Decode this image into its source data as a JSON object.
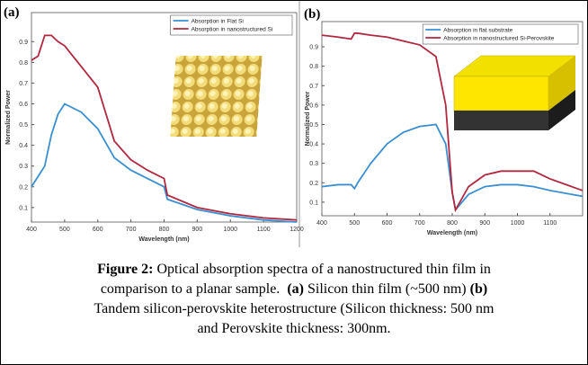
{
  "chart_data": [
    {
      "type": "line",
      "panel": "(a)",
      "xlabel": "Wavelength (nm)",
      "ylabel": "Normalized Power",
      "x": [
        400,
        420,
        440,
        460,
        480,
        500,
        550,
        600,
        650,
        700,
        750,
        800,
        810,
        900,
        1000,
        1100,
        1200
      ],
      "series": [
        {
          "name": "Absorption in Flat Si",
          "color": "#3b8fd0",
          "values": [
            0.2,
            0.25,
            0.3,
            0.45,
            0.55,
            0.6,
            0.56,
            0.48,
            0.34,
            0.28,
            0.24,
            0.2,
            0.14,
            0.09,
            0.06,
            0.04,
            0.03
          ]
        },
        {
          "name": "Absorption in nanostructured Si",
          "color": "#b0283f",
          "values": [
            0.81,
            0.83,
            0.93,
            0.93,
            0.9,
            0.88,
            0.78,
            0.68,
            0.42,
            0.33,
            0.28,
            0.24,
            0.16,
            0.1,
            0.07,
            0.05,
            0.04
          ]
        }
      ],
      "xlim": [
        400,
        1200
      ],
      "xticks": [
        400,
        500,
        600,
        700,
        800,
        900,
        1000,
        1100,
        1200
      ],
      "ylim": [
        0.03,
        1.04
      ],
      "yticks": [
        0.1,
        0.2,
        0.3,
        0.4,
        0.5,
        0.6,
        0.7,
        0.8,
        0.9
      ],
      "legend": "upper right"
    },
    {
      "type": "line",
      "panel": "(b)",
      "xlabel": "Wavelength (nm)",
      "ylabel": "Normalized Power",
      "x": [
        400,
        450,
        490,
        500,
        510,
        550,
        600,
        650,
        700,
        750,
        780,
        800,
        810,
        850,
        900,
        950,
        1000,
        1050,
        1100,
        1200
      ],
      "series": [
        {
          "name": "Absorption in flat substrate",
          "color": "#3b8fd0",
          "values": [
            0.18,
            0.19,
            0.19,
            0.17,
            0.2,
            0.3,
            0.4,
            0.46,
            0.49,
            0.5,
            0.4,
            0.15,
            0.06,
            0.14,
            0.18,
            0.19,
            0.19,
            0.18,
            0.16,
            0.13
          ]
        },
        {
          "name": "Absorption in nanostructured Si-Perovskite",
          "color": "#b0283f",
          "values": [
            0.96,
            0.95,
            0.94,
            0.97,
            0.97,
            0.96,
            0.95,
            0.93,
            0.91,
            0.85,
            0.6,
            0.15,
            0.06,
            0.18,
            0.24,
            0.26,
            0.26,
            0.26,
            0.22,
            0.16
          ]
        }
      ],
      "xlim": [
        400,
        1200
      ],
      "xticks": [
        400,
        500,
        600,
        700,
        800,
        900,
        1000,
        1100
      ],
      "ylim": [
        0.03,
        1.03
      ],
      "yticks": [
        0.1,
        0.2,
        0.3,
        0.4,
        0.5,
        0.6,
        0.7,
        0.8,
        0.9
      ],
      "legend": "upper right"
    }
  ],
  "caption": [
    [
      {
        "text": "Figure 2:",
        "bold": true
      },
      {
        "text": " Optical absorption spectra of a nanostructured thin film in"
      }
    ],
    [
      {
        "text": "comparison to a planar sample.  "
      },
      {
        "text": "(a)",
        "bold": true
      },
      {
        "text": " Silicon thin film (~500 nm) "
      },
      {
        "text": "(b)",
        "bold": true
      }
    ],
    [
      {
        "text": "Tandem silicon-perovskite heterostructure (Silicon thickness: 500 nm"
      }
    ],
    [
      {
        "text": "and Perovskite thickness: 300nm."
      }
    ]
  ]
}
